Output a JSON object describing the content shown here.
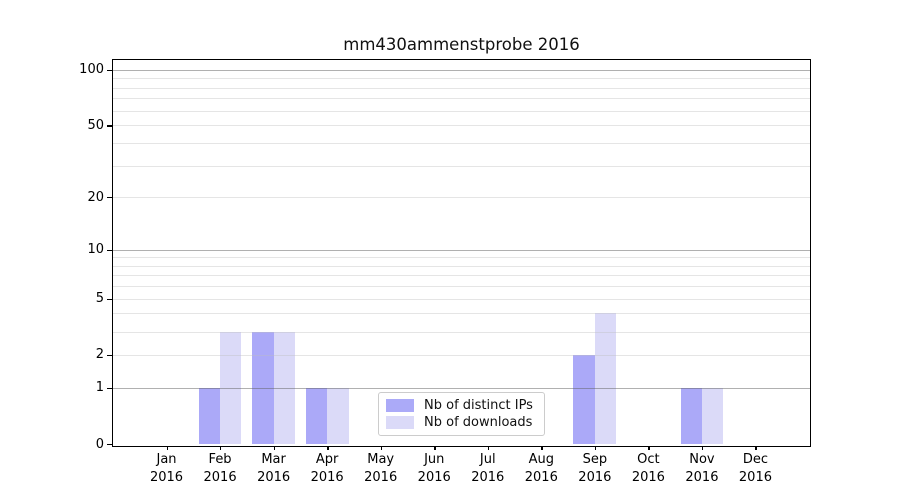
{
  "title": "mm430ammenstprobe 2016",
  "chart_data": {
    "type": "bar",
    "title": "mm430ammenstprobe 2016",
    "categories": [
      "Jan",
      "Feb",
      "Mar",
      "Apr",
      "May",
      "Jun",
      "Jul",
      "Aug",
      "Sep",
      "Oct",
      "Nov",
      "Dec"
    ],
    "year": "2016",
    "series": [
      {
        "name": "Nb of distinct IPs",
        "values": [
          0,
          1,
          3,
          1,
          0,
          0,
          0,
          0,
          2,
          0,
          1,
          0
        ],
        "color_solid": "#abaaf8",
        "color_bar": "rgba(143,140,246,0.75)"
      },
      {
        "name": "Nb of downloads",
        "values": [
          0,
          3,
          3,
          1,
          0,
          0,
          0,
          0,
          4,
          0,
          1,
          0
        ],
        "color_solid": "#dbdaf8",
        "color_bar": "rgba(207,206,246,0.75)"
      }
    ],
    "yscale": "log(1+x)",
    "ylim": [
      0,
      113
    ],
    "ytick_values": [
      0,
      1,
      2,
      5,
      10,
      20,
      50,
      100
    ],
    "ytick_labels": [
      "0",
      "1",
      "2",
      "5",
      "10",
      "20",
      "50",
      "100"
    ],
    "major_grid_values": [
      1,
      10,
      100
    ],
    "minor_grid_values": [
      2,
      3,
      4,
      5,
      6,
      7,
      8,
      9,
      20,
      30,
      40,
      50,
      60,
      70,
      80,
      90
    ],
    "grid": "on",
    "xlabel": "",
    "ylabel": "",
    "legend": {
      "position": "lower center",
      "entries": [
        "Nb of distinct IPs",
        "Nb of downloads"
      ]
    }
  }
}
